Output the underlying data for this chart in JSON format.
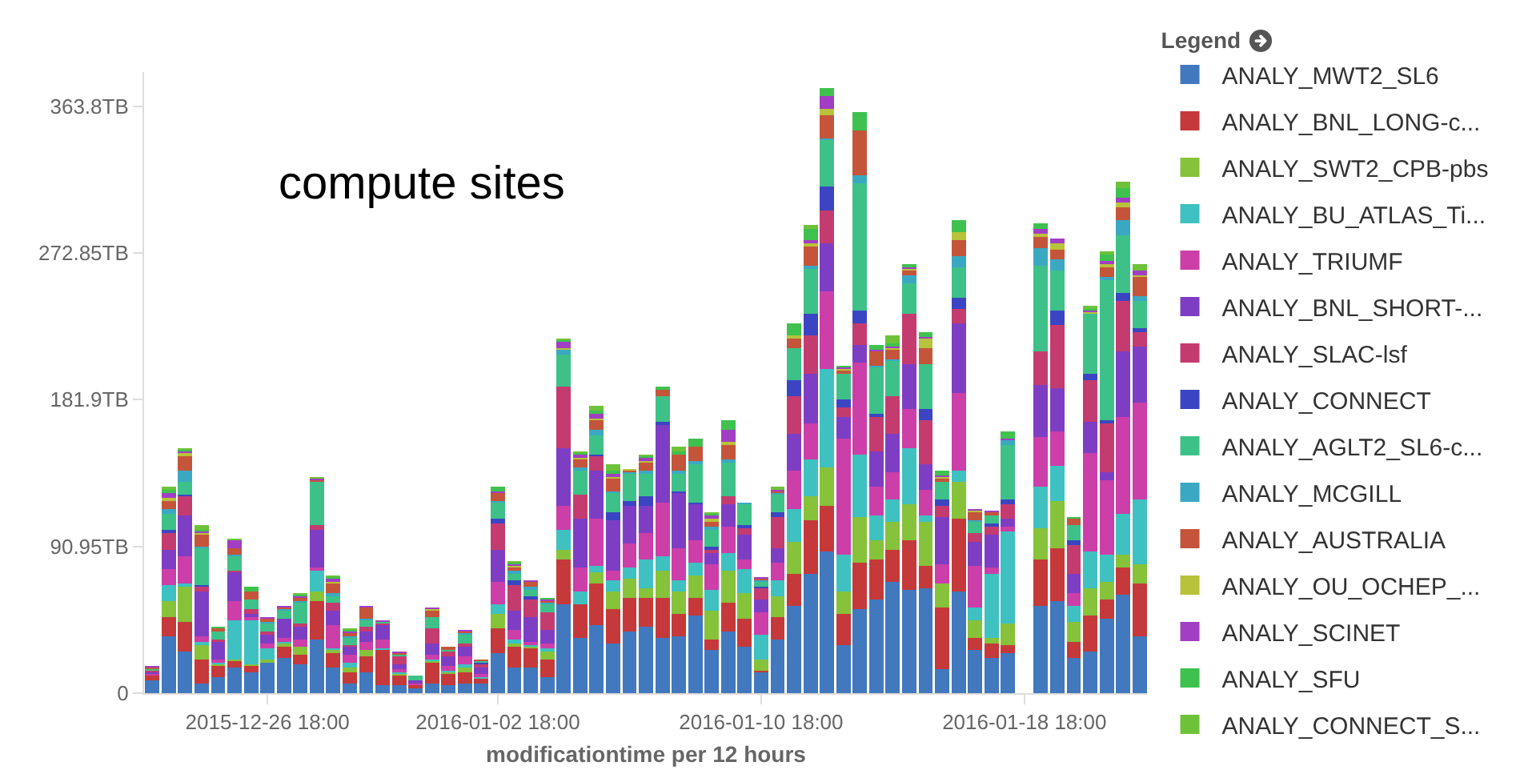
{
  "chart_data": {
    "type": "bar",
    "stacked": true,
    "xlabel": "modificationtime per 12 hours",
    "legend_title": "Legend",
    "legend": "right",
    "annotations": [
      "compute sites"
    ],
    "x": [
      "2015-12-23T06:00",
      "2015-12-23T18:00",
      "2015-12-24T06:00",
      "2015-12-24T18:00",
      "2015-12-25T06:00",
      "2015-12-25T18:00",
      "2015-12-26T06:00",
      "2015-12-26T18:00",
      "2015-12-27T06:00",
      "2015-12-27T18:00",
      "2015-12-28T06:00",
      "2015-12-28T18:00",
      "2015-12-29T06:00",
      "2015-12-29T18:00",
      "2015-12-30T06:00",
      "2015-12-30T18:00",
      "2015-12-31T06:00",
      "2015-12-31T18:00",
      "2016-01-01T06:00",
      "2016-01-01T18:00",
      "2016-01-02T06:00",
      "2016-01-02T18:00",
      "2016-01-03T06:00",
      "2016-01-03T18:00",
      "2016-01-04T06:00",
      "2016-01-04T18:00",
      "2016-01-05T06:00",
      "2016-01-05T18:00",
      "2016-01-06T06:00",
      "2016-01-06T18:00",
      "2016-01-07T06:00",
      "2016-01-07T18:00",
      "2016-01-08T06:00",
      "2016-01-08T18:00",
      "2016-01-09T06:00",
      "2016-01-09T18:00",
      "2016-01-10T06:00",
      "2016-01-10T18:00",
      "2016-01-11T06:00",
      "2016-01-11T18:00",
      "2016-01-12T06:00",
      "2016-01-12T18:00",
      "2016-01-13T06:00",
      "2016-01-13T18:00",
      "2016-01-14T06:00",
      "2016-01-14T18:00",
      "2016-01-15T06:00",
      "2016-01-15T18:00",
      "2016-01-16T06:00",
      "2016-01-16T18:00",
      "2016-01-17T06:00",
      "2016-01-17T18:00",
      "2016-01-18T06:00",
      "2016-01-18T18:00",
      "2016-01-19T06:00",
      "2016-01-19T18:00",
      "2016-01-20T06:00",
      "2016-01-20T18:00",
      "2016-01-21T06:00",
      "2016-01-21T18:00",
      "2016-01-22T06:00"
    ],
    "xlim": [
      "2015-12-23T00:00",
      "2016-01-22T12:00"
    ],
    "xticks": [
      {
        "value": "2015-12-26T18:00",
        "label": "2015-12-26 18:00"
      },
      {
        "value": "2016-01-02T18:00",
        "label": "2016-01-02 18:00"
      },
      {
        "value": "2016-01-10T18:00",
        "label": "2016-01-10 18:00"
      },
      {
        "value": "2016-01-18T18:00",
        "label": "2016-01-18 18:00"
      }
    ],
    "ylim": [
      0,
      385
    ],
    "yticks": [
      0,
      {
        "value": 90.95,
        "label": "90.95TB"
      },
      {
        "value": 181.9,
        "label": "181.9TB"
      },
      {
        "value": 272.85,
        "label": "272.85TB"
      },
      {
        "value": 363.8,
        "label": "363.8TB"
      }
    ],
    "series": [
      {
        "name": "ANALY_MWT2_SL6",
        "color": "#4178be",
        "values": [
          8,
          35,
          26,
          6,
          10,
          16,
          13,
          19,
          22,
          18,
          33,
          16,
          6,
          13,
          5,
          5,
          3,
          6,
          5,
          6,
          6,
          25,
          16,
          16,
          10,
          55,
          34,
          42,
          31,
          38,
          41,
          34,
          35,
          48,
          27,
          38,
          29,
          13,
          33,
          54,
          74,
          88,
          30,
          52,
          58,
          69,
          64,
          65,
          15,
          63,
          27,
          22,
          25,
          null,
          54,
          57,
          22,
          26,
          46,
          61,
          35
        ]
      },
      {
        "name": "ANALY_BNL_LONG-c...",
        "color": "#c5393b",
        "values": [
          3,
          12,
          18,
          15,
          7,
          4,
          4,
          0,
          7,
          6,
          24,
          9,
          7,
          10,
          22,
          6,
          2,
          13,
          7,
          7,
          3,
          15,
          13,
          12,
          11,
          28,
          21,
          26,
          21,
          21,
          18,
          25,
          14,
          11,
          6,
          18,
          17,
          1,
          14,
          20,
          33,
          28,
          19,
          29,
          25,
          20,
          31,
          14,
          38,
          45,
          7,
          9,
          5,
          null,
          29,
          33,
          10,
          22,
          12,
          17,
          33
        ]
      },
      {
        "name": "ANALY_SWT2_CPB-pbs",
        "color": "#86c23a",
        "values": [
          0,
          10,
          22,
          9,
          1,
          1,
          1,
          2,
          2,
          5,
          6,
          2,
          3,
          4,
          0,
          1,
          0,
          1,
          1,
          3,
          0,
          9,
          2,
          1,
          5,
          6,
          0,
          7,
          11,
          12,
          6,
          17,
          14,
          14,
          18,
          20,
          16,
          7,
          13,
          20,
          15,
          24,
          14,
          28,
          12,
          17,
          22,
          27,
          15,
          23,
          11,
          3,
          13,
          null,
          19,
          29,
          12,
          17,
          11,
          8,
          12
        ]
      },
      {
        "name": "ANALY_BU_ATLAS_Ti...",
        "color": "#3ec1c0",
        "values": [
          0,
          10,
          2,
          2,
          1,
          24,
          27,
          7,
          1,
          0,
          13,
          1,
          3,
          0,
          1,
          1,
          0,
          1,
          1,
          2,
          1,
          6,
          2,
          1,
          2,
          12,
          8,
          4,
          7,
          7,
          18,
          9,
          7,
          8,
          13,
          11,
          15,
          15,
          10,
          20,
          23,
          61,
          23,
          39,
          15,
          14,
          35,
          4,
          0,
          7,
          8,
          40,
          57,
          null,
          26,
          22,
          10,
          23,
          17,
          25,
          40
        ]
      },
      {
        "name": "ANALY_TRIUMF",
        "color": "#cc3ea8",
        "values": [
          1,
          10,
          17,
          3,
          2,
          12,
          2,
          3,
          2,
          4,
          2,
          14,
          5,
          5,
          5,
          2,
          1,
          3,
          3,
          5,
          2,
          14,
          6,
          2,
          3,
          15,
          15,
          29,
          6,
          15,
          16,
          33,
          20,
          14,
          16,
          16,
          6,
          14,
          11,
          24,
          22,
          48,
          72,
          57,
          18,
          17,
          24,
          16,
          12,
          48,
          26,
          4,
          3,
          null,
          31,
          21,
          8,
          61,
          46,
          60,
          60
        ]
      },
      {
        "name": "ANALY_BNL_SHORT-...",
        "color": "#7d3ec4",
        "values": [
          1,
          12,
          25,
          28,
          11,
          18,
          2,
          5,
          12,
          8,
          23,
          9,
          5,
          6,
          9,
          3,
          2,
          7,
          6,
          6,
          4,
          20,
          12,
          15,
          8,
          36,
          30,
          30,
          31,
          23,
          17,
          48,
          34,
          22,
          7,
          14,
          15,
          8,
          9,
          23,
          31,
          30,
          13,
          11,
          22,
          24,
          28,
          16,
          29,
          43,
          15,
          20,
          5,
          null,
          32,
          27,
          12,
          19,
          5,
          41,
          35
        ]
      },
      {
        "name": "ANALY_SLAC-lsf",
        "color": "#c43c6f",
        "values": [
          1,
          10,
          12,
          3,
          1,
          1,
          3,
          2,
          0,
          2,
          3,
          5,
          1,
          3,
          1,
          5,
          0,
          9,
          3,
          2,
          2,
          16,
          16,
          11,
          11,
          38,
          15,
          9,
          0,
          0,
          0,
          0,
          0,
          0,
          2,
          5,
          4,
          7,
          19,
          23,
          24,
          20,
          6,
          13,
          21,
          23,
          31,
          27,
          7,
          9,
          5,
          5,
          9,
          null,
          21,
          39,
          18,
          26,
          30,
          31,
          9
        ]
      },
      {
        "name": "ANALY_CONNECT",
        "color": "#3b45c3",
        "values": [
          0,
          2,
          1,
          1,
          0,
          0,
          0,
          0,
          0,
          0,
          0,
          0,
          0,
          0,
          0,
          0,
          0,
          0,
          0,
          0,
          1,
          3,
          3,
          2,
          0,
          0,
          0,
          1,
          5,
          3,
          6,
          2,
          1,
          1,
          2,
          0,
          2,
          1,
          3,
          10,
          13,
          15,
          5,
          8,
          2,
          0,
          0,
          7,
          4,
          7,
          0,
          2,
          3,
          null,
          0,
          9,
          3,
          4,
          2,
          5,
          2
        ]
      },
      {
        "name": "ANALY_AGLT2_SL6-c...",
        "color": "#3ec188",
        "values": [
          1,
          10,
          8,
          23,
          5,
          9,
          6,
          5,
          5,
          13,
          27,
          4,
          4,
          4,
          1,
          1,
          3,
          7,
          1,
          5,
          1,
          10,
          4,
          4,
          5,
          20,
          15,
          12,
          12,
          17,
          14,
          16,
          11,
          24,
          10,
          21,
          13,
          3,
          11,
          20,
          28,
          29,
          16,
          79,
          29,
          22,
          19,
          28,
          11,
          19,
          7,
          5,
          34,
          null,
          53,
          25,
          9,
          37,
          87,
          36,
          17
        ]
      },
      {
        "name": "ANALY_MCGILL",
        "color": "#3ba8c2",
        "values": [
          0,
          3,
          7,
          1,
          0,
          1,
          0,
          1,
          1,
          1,
          0,
          2,
          1,
          1,
          0,
          0,
          0,
          0,
          0,
          1,
          0,
          1,
          2,
          2,
          1,
          3,
          2,
          3,
          1,
          1,
          2,
          0,
          2,
          2,
          2,
          2,
          1,
          1,
          1,
          0,
          2,
          1,
          0,
          5,
          1,
          1,
          5,
          0,
          0,
          7,
          1,
          0,
          3,
          null,
          11,
          7,
          0,
          0,
          2,
          9,
          3
        ]
      },
      {
        "name": "ANALY_AUSTRALIA",
        "color": "#c4553a",
        "values": [
          1,
          5,
          9,
          7,
          2,
          4,
          5,
          2,
          1,
          2,
          1,
          6,
          2,
          7,
          0,
          1,
          0,
          4,
          2,
          1,
          1,
          5,
          2,
          3,
          1,
          0,
          5,
          6,
          8,
          1,
          5,
          4,
          10,
          9,
          3,
          9,
          0,
          1,
          1,
          6,
          12,
          14,
          2,
          28,
          9,
          6,
          3,
          10,
          2,
          10,
          5,
          2,
          0,
          null,
          7,
          6,
          4,
          0,
          6,
          8,
          12
        ]
      },
      {
        "name": "ANALY_OU_OCHEP_...",
        "color": "#b8c23a",
        "values": [
          0,
          2,
          2,
          1,
          0,
          0,
          0,
          0,
          0,
          0,
          0,
          1,
          0,
          0,
          0,
          0,
          0,
          1,
          0,
          0,
          0,
          0,
          1,
          0,
          0,
          1,
          1,
          1,
          1,
          1,
          1,
          0,
          0,
          0,
          2,
          2,
          0,
          0,
          0,
          2,
          2,
          4,
          1,
          0,
          0,
          1,
          1,
          6,
          1,
          5,
          1,
          0,
          0,
          null,
          2,
          4,
          0,
          1,
          2,
          3,
          1
        ]
      },
      {
        "name": "ANALY_SCINET",
        "color": "#a23ec4",
        "values": [
          1,
          3,
          1,
          1,
          0,
          5,
          0,
          1,
          1,
          1,
          1,
          2,
          1,
          1,
          1,
          1,
          0,
          1,
          0,
          1,
          0,
          1,
          1,
          1,
          1,
          4,
          2,
          3,
          2,
          0,
          2,
          0,
          0,
          0,
          2,
          7,
          0,
          1,
          1,
          0,
          2,
          8,
          1,
          0,
          1,
          1,
          1,
          1,
          1,
          0,
          1,
          1,
          1,
          null,
          3,
          3,
          0,
          1,
          2,
          3,
          3
        ]
      },
      {
        "name": "ANALY_SFU",
        "color": "#3ec14f",
        "values": [
          0,
          2,
          1,
          1,
          1,
          0,
          3,
          0,
          0,
          1,
          0,
          1,
          1,
          0,
          0,
          0,
          0,
          0,
          0,
          0,
          0,
          3,
          1,
          0,
          1,
          1,
          1,
          2,
          2,
          0,
          1,
          2,
          2,
          5,
          1,
          6,
          0,
          0,
          0,
          7,
          7,
          5,
          1,
          11,
          3,
          2,
          2,
          3,
          3,
          7,
          0,
          0,
          4,
          null,
          3,
          0,
          1,
          1,
          4,
          6,
          0
        ]
      },
      {
        "name": "ANALY_CONNECT_S...",
        "color": "#6ec23a",
        "values": [
          0,
          2,
          1,
          3,
          0,
          1,
          0,
          0,
          0,
          1,
          1,
          1,
          1,
          0,
          0,
          0,
          0,
          0,
          0,
          0,
          0,
          0,
          1,
          0,
          0,
          1,
          1,
          3,
          4,
          0,
          1,
          0,
          3,
          0,
          1,
          0,
          0,
          0,
          2,
          0,
          2,
          0,
          0,
          0,
          0,
          5,
          0,
          0,
          0,
          0,
          0,
          0,
          0,
          null,
          0,
          0,
          0,
          2,
          2,
          4,
          4
        ]
      }
    ]
  }
}
